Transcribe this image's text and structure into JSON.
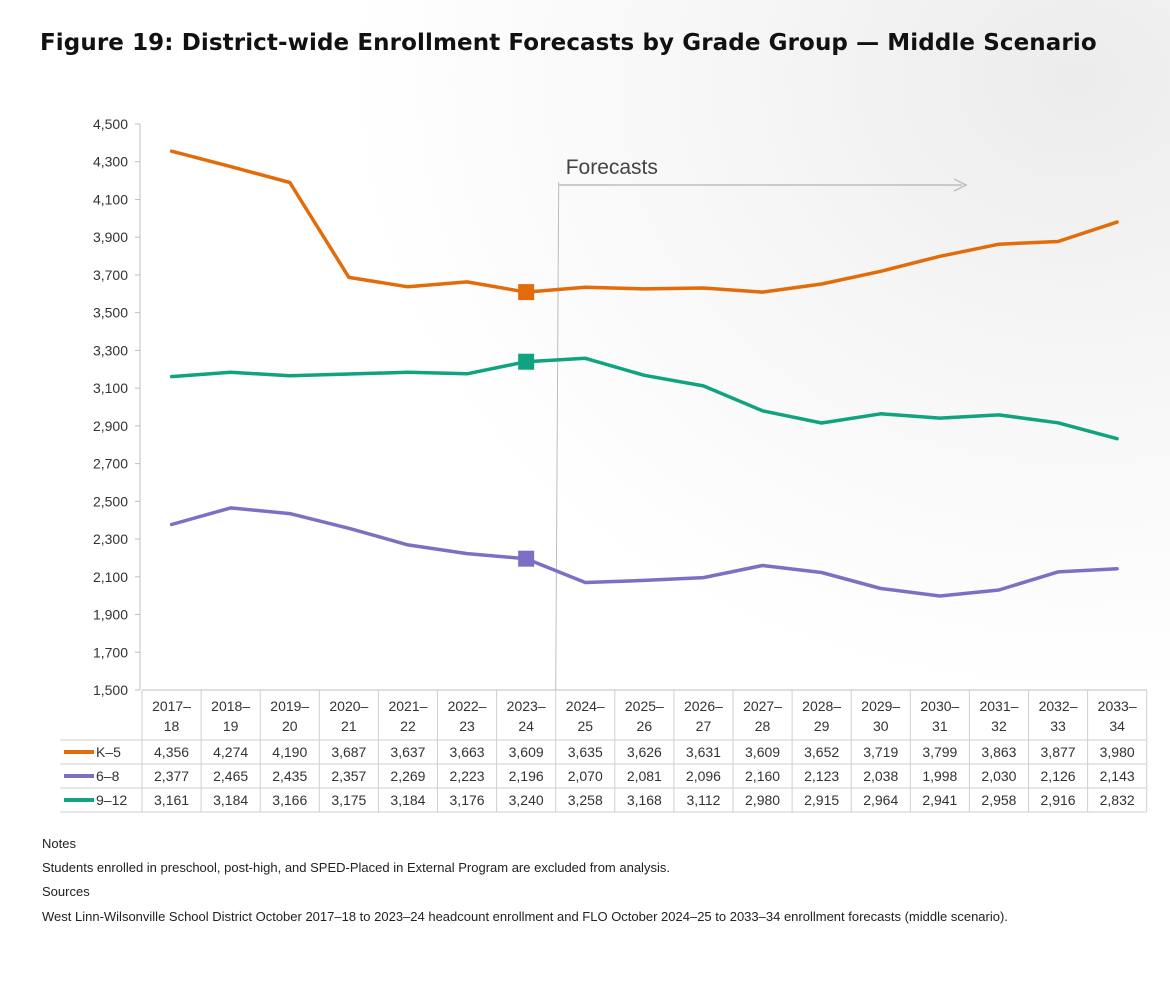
{
  "title": "Figure 19: District-wide Enrollment Forecasts by Grade Group — Middle Scenario",
  "chart_data": {
    "type": "line",
    "title": "Figure 19: District-wide Enrollment Forecasts by Grade Group — Middle Scenario",
    "xlabel": "",
    "ylabel": "",
    "ylim": [
      1500,
      4500
    ],
    "y_ticks": [
      "1,500",
      "1,700",
      "1,900",
      "2,100",
      "2,300",
      "2,500",
      "2,700",
      "2,900",
      "3,100",
      "3,300",
      "3,500",
      "3,700",
      "3,900",
      "4,100",
      "4,300",
      "4,500"
    ],
    "y_tick_values": [
      1500,
      1700,
      1900,
      2100,
      2300,
      2500,
      2700,
      2900,
      3100,
      3300,
      3500,
      3700,
      3900,
      4100,
      4300,
      4500
    ],
    "categories": [
      [
        "2017–",
        "18"
      ],
      [
        "2018–",
        "19"
      ],
      [
        "2019–",
        "20"
      ],
      [
        "2020–",
        "21"
      ],
      [
        "2021–",
        "22"
      ],
      [
        "2022–",
        "23"
      ],
      [
        "2023–",
        "24"
      ],
      [
        "2024–",
        "25"
      ],
      [
        "2025–",
        "26"
      ],
      [
        "2026–",
        "27"
      ],
      [
        "2027–",
        "28"
      ],
      [
        "2028–",
        "29"
      ],
      [
        "2029–",
        "30"
      ],
      [
        "2030–",
        "31"
      ],
      [
        "2031–",
        "32"
      ],
      [
        "2032–",
        "33"
      ],
      [
        "2033–",
        "34"
      ]
    ],
    "annotation": "Forecasts",
    "forecast_start_index": 7,
    "last_actual_index": 6,
    "grid": false,
    "legend": "table-left",
    "series": [
      {
        "name": "K–5",
        "color": "#e36c0a",
        "values": [
          4356,
          4274,
          4190,
          3687,
          3637,
          3663,
          3609,
          3635,
          3626,
          3631,
          3609,
          3652,
          3719,
          3799,
          3863,
          3877,
          3980
        ],
        "labels": [
          "4,356",
          "4,274",
          "4,190",
          "3,687",
          "3,637",
          "3,663",
          "3,609",
          "3,635",
          "3,626",
          "3,631",
          "3,609",
          "3,652",
          "3,719",
          "3,799",
          "3,863",
          "3,877",
          "3,980"
        ]
      },
      {
        "name": "6–8",
        "color": "#7f6fc4",
        "values": [
          2377,
          2465,
          2435,
          2357,
          2269,
          2223,
          2196,
          2070,
          2081,
          2096,
          2160,
          2123,
          2038,
          1998,
          2030,
          2126,
          2143
        ],
        "labels": [
          "2,377",
          "2,465",
          "2,435",
          "2,357",
          "2,269",
          "2,223",
          "2,196",
          "2,070",
          "2,081",
          "2,096",
          "2,160",
          "2,123",
          "2,038",
          "1,998",
          "2,030",
          "2,126",
          "2,143"
        ]
      },
      {
        "name": "9–12",
        "color": "#10a37f",
        "values": [
          3161,
          3184,
          3166,
          3175,
          3184,
          3176,
          3240,
          3258,
          3168,
          3112,
          2980,
          2915,
          2964,
          2941,
          2958,
          2916,
          2832
        ],
        "labels": [
          "3,161",
          "3,184",
          "3,166",
          "3,175",
          "3,184",
          "3,176",
          "3,240",
          "3,258",
          "3,168",
          "3,112",
          "2,980",
          "2,915",
          "2,964",
          "2,941",
          "2,958",
          "2,916",
          "2,832"
        ]
      }
    ]
  },
  "notes": {
    "notes_heading": "Notes",
    "notes_text": "Students enrolled in preschool, post-high, and SPED-Placed in External Program are excluded from analysis.",
    "sources_heading": "Sources",
    "sources_text": "West Linn-Wilsonville School District October 2017–18 to 2023–24 headcount enrollment and FLO October 2024–25 to 2033–34 enrollment forecasts (middle scenario)."
  }
}
